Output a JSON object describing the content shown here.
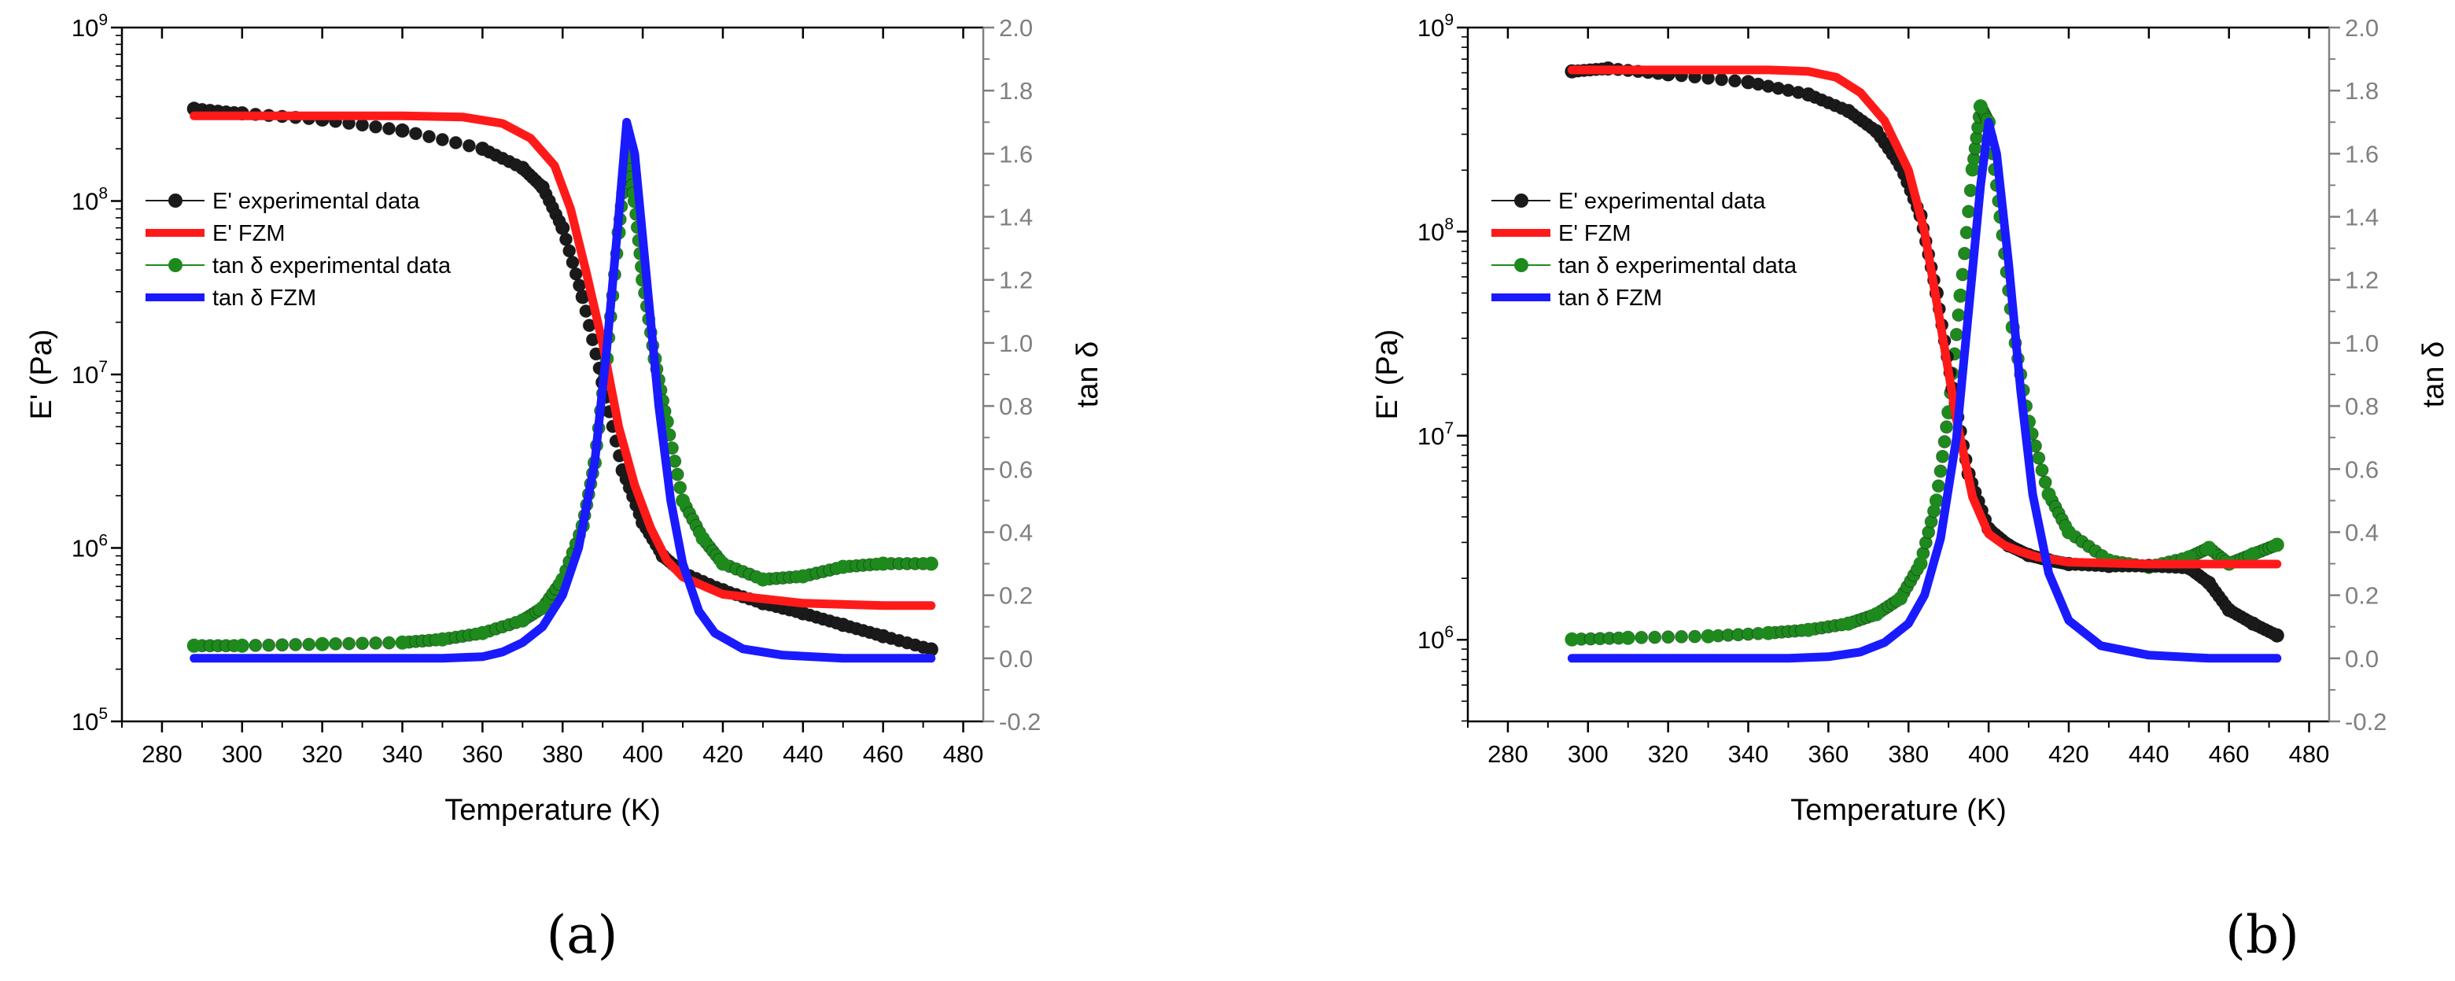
{
  "figure": {
    "caption_a": "(a)",
    "caption_b": "(b)"
  },
  "legend_labels": {
    "exp_E": "E' experimental data",
    "fzm_E": "E' FZM",
    "exp_tan": "tan δ experimental data",
    "fzm_tan": "tan δ FZM"
  },
  "colors": {
    "exp_E": "#1a1a1a",
    "fzm_E": "#ff1a1a",
    "exp_tan": "#1e8a1e",
    "fzm_tan": "#1a1aff",
    "right_axis": "#808080"
  },
  "chart_data": [
    {
      "type": "line",
      "title": "(a)",
      "xlabel": "Temperature (K)",
      "ylabel": "E' (Pa)",
      "y2label": "tan δ",
      "xlim": [
        270,
        485
      ],
      "x_ticks": [
        280,
        300,
        320,
        340,
        360,
        380,
        400,
        420,
        440,
        460,
        480
      ],
      "ylim_log10": [
        5,
        9
      ],
      "y_ticks_exp": [
        5,
        6,
        7,
        8,
        9
      ],
      "y2lim": [
        -0.2,
        2.0
      ],
      "y2_ticks": [
        "-0.2",
        "0.0",
        "0.2",
        "0.4",
        "0.6",
        "0.8",
        "1.0",
        "1.2",
        "1.4",
        "1.6",
        "1.8",
        "2.0"
      ],
      "legend_position": "upper-left",
      "series": [
        {
          "name": "E' experimental data",
          "axis": "left",
          "kind": "markers",
          "x": [
            288,
            300,
            320,
            340,
            360,
            370,
            375,
            380,
            385,
            390,
            395,
            400,
            405,
            410,
            420,
            430,
            440,
            450,
            460,
            472
          ],
          "y": [
            340000000,
            320000000,
            295000000,
            255000000,
            200000000,
            155000000,
            120000000,
            70000000,
            28000000,
            9000000,
            2800000,
            1400000,
            900000,
            720000,
            570000,
            480000,
            420000,
            360000,
            310000,
            260000
          ]
        },
        {
          "name": "E' FZM",
          "axis": "left",
          "kind": "line",
          "x": [
            288,
            300,
            320,
            340,
            355,
            365,
            372,
            378,
            382,
            386,
            390,
            394,
            398,
            402,
            406,
            410,
            420,
            440,
            460,
            472
          ],
          "y": [
            310000000,
            310000000,
            310000000,
            310000000,
            305000000,
            280000000,
            230000000,
            160000000,
            90000000,
            38000000,
            15000000,
            5000000,
            2300000,
            1300000,
            850000,
            680000,
            540000,
            480000,
            465000,
            465000
          ]
        },
        {
          "name": "tan δ experimental data",
          "axis": "right",
          "kind": "markers",
          "x": [
            288,
            300,
            320,
            340,
            350,
            360,
            370,
            375,
            380,
            385,
            388,
            391,
            394,
            396,
            398,
            400,
            403,
            406,
            410,
            415,
            420,
            430,
            440,
            450,
            460,
            472
          ],
          "y": [
            0.04,
            0.04,
            0.045,
            0.05,
            0.06,
            0.08,
            0.12,
            0.16,
            0.25,
            0.42,
            0.62,
            0.95,
            1.35,
            1.6,
            1.45,
            1.2,
            0.95,
            0.75,
            0.5,
            0.38,
            0.3,
            0.25,
            0.26,
            0.29,
            0.3,
            0.3
          ]
        },
        {
          "name": "tan δ FZM",
          "axis": "right",
          "kind": "line",
          "x": [
            288,
            300,
            320,
            340,
            350,
            360,
            365,
            370,
            375,
            380,
            384,
            388,
            391,
            394,
            396,
            398,
            401,
            404,
            407,
            410,
            414,
            418,
            425,
            435,
            450,
            472
          ],
          "y": [
            0.0,
            0.0,
            0.0,
            0.0,
            0.0,
            0.005,
            0.02,
            0.05,
            0.1,
            0.2,
            0.35,
            0.62,
            0.98,
            1.4,
            1.7,
            1.6,
            1.2,
            0.8,
            0.5,
            0.3,
            0.15,
            0.08,
            0.03,
            0.01,
            0.0,
            0.0
          ]
        }
      ]
    },
    {
      "type": "line",
      "title": "(b)",
      "xlabel": "Temperature (K)",
      "ylabel": "E' (Pa)",
      "y2label": "tan δ",
      "xlim": [
        270,
        485
      ],
      "x_ticks": [
        280,
        300,
        320,
        340,
        360,
        380,
        400,
        420,
        440,
        460,
        480
      ],
      "ylim_log10": [
        5.6,
        9
      ],
      "y_ticks_exp": [
        6,
        7,
        8,
        9
      ],
      "y2lim": [
        -0.2,
        2.0
      ],
      "y2_ticks": [
        "-0.2",
        "0.0",
        "0.2",
        "0.4",
        "0.6",
        "0.8",
        "1.0",
        "1.2",
        "1.4",
        "1.6",
        "1.8",
        "2.0"
      ],
      "legend_position": "upper-left",
      "series": [
        {
          "name": "E' experimental data",
          "axis": "left",
          "kind": "markers",
          "x": [
            296,
            305,
            320,
            340,
            355,
            365,
            372,
            378,
            383,
            387,
            391,
            395,
            400,
            405,
            410,
            415,
            420,
            430,
            440,
            450,
            455,
            460,
            466,
            472
          ],
          "y": [
            610000000,
            630000000,
            590000000,
            540000000,
            470000000,
            390000000,
            310000000,
            210000000,
            120000000,
            50000000,
            17000000,
            6500000,
            3500000,
            2900000,
            2600000,
            2450000,
            2350000,
            2300000,
            2300000,
            2250000,
            1900000,
            1400000,
            1200000,
            1050000
          ]
        },
        {
          "name": "E' FZM",
          "axis": "left",
          "kind": "line",
          "x": [
            296,
            320,
            345,
            355,
            362,
            368,
            374,
            380,
            384,
            388,
            392,
            396,
            400,
            404,
            408,
            412,
            420,
            440,
            472
          ],
          "y": [
            620000000,
            620000000,
            620000000,
            610000000,
            570000000,
            480000000,
            350000000,
            200000000,
            100000000,
            35000000,
            12000000,
            5000000,
            3300000,
            2900000,
            2700000,
            2550000,
            2400000,
            2350000,
            2350000
          ]
        },
        {
          "name": "tan δ experimental data",
          "axis": "right",
          "kind": "markers",
          "x": [
            296,
            310,
            330,
            345,
            355,
            365,
            372,
            378,
            383,
            387,
            390,
            393,
            396,
            398,
            400,
            403,
            406,
            410,
            415,
            420,
            430,
            440,
            450,
            455,
            460,
            466,
            472
          ],
          "y": [
            0.06,
            0.065,
            0.07,
            0.08,
            0.09,
            0.11,
            0.14,
            0.19,
            0.3,
            0.5,
            0.78,
            1.15,
            1.55,
            1.75,
            1.7,
            1.4,
            1.05,
            0.75,
            0.52,
            0.4,
            0.31,
            0.29,
            0.32,
            0.35,
            0.3,
            0.33,
            0.36
          ]
        },
        {
          "name": "tan δ FZM",
          "axis": "right",
          "kind": "line",
          "x": [
            296,
            320,
            350,
            360,
            368,
            374,
            380,
            384,
            388,
            392,
            395,
            398,
            400,
            402,
            405,
            408,
            411,
            415,
            420,
            428,
            440,
            455,
            472
          ],
          "y": [
            0.0,
            0.0,
            0.0,
            0.005,
            0.02,
            0.05,
            0.11,
            0.2,
            0.38,
            0.7,
            1.1,
            1.5,
            1.7,
            1.6,
            1.25,
            0.85,
            0.52,
            0.27,
            0.12,
            0.04,
            0.01,
            0.0,
            0.0
          ]
        }
      ]
    }
  ]
}
